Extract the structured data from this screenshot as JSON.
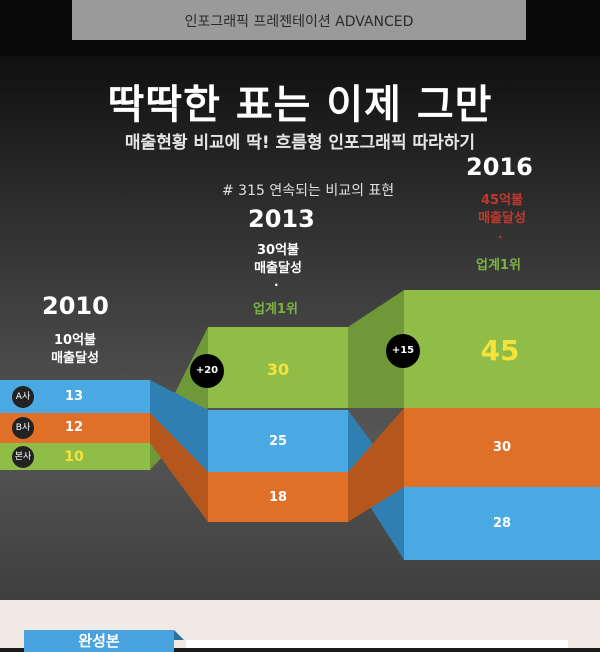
{
  "top_label": "인포그래픽 프레젠테이션 ADVANCED",
  "headline": "딱딱한 표는 이제 그만",
  "subheadline": "매출현황 비교에 딱! 흐름형 인포그래픽 따라하기",
  "hashtag": "# 315 연속되는 비교의 표현",
  "years": {
    "y2010": {
      "year": "2010",
      "note1": "10억불",
      "note2": "매출달성"
    },
    "y2013": {
      "year": "2013",
      "note1": "30억불",
      "note2": "매출달성",
      "dot": "·",
      "rank": "업계1위"
    },
    "y2016": {
      "year": "2016",
      "note1": "45억불",
      "note2": "매출달성",
      "dot": "·",
      "rank": "업계1위"
    }
  },
  "badges": {
    "a": "A사",
    "b": "B사",
    "self": "본사"
  },
  "values": {
    "v2010_a": "13",
    "v2010_b": "12",
    "v2010_self": "10",
    "v2013_self": "30",
    "v2013_a": "25",
    "v2013_b": "18",
    "v2016_self": "45",
    "v2016_b": "30",
    "v2016_a": "28"
  },
  "circles": {
    "c1": "+20",
    "c2": "+15"
  },
  "bottom_tab": "완성본",
  "colors": {
    "blue": "#4aa8e3",
    "orange": "#e07028",
    "green": "#8fbd47",
    "yellow": "#f5e23a",
    "red": "#c0392b"
  }
}
